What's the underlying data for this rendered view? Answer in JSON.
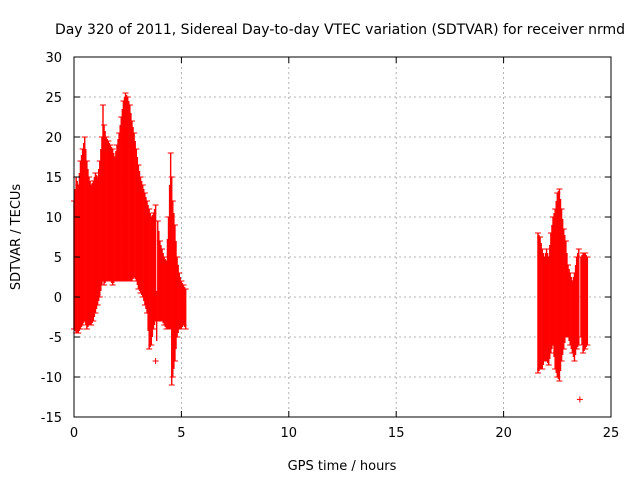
{
  "chart_data": {
    "type": "scatter",
    "title": "Day 320 of 2011, Sidereal Day-to-day VTEC variation (SDTVAR) for receiver nrmd",
    "xlabel": "GPS time / hours",
    "ylabel": "SDTVAR / TECUs",
    "xlim": [
      0,
      25
    ],
    "ylim": [
      -15,
      30
    ],
    "xticks": [
      "0",
      "5",
      "10",
      "15",
      "20",
      "25"
    ],
    "yticks": [
      "-15",
      "-10",
      "-5",
      "0",
      "5",
      "10",
      "15",
      "20",
      "25",
      "30"
    ],
    "grid": true,
    "series": [
      {
        "name": "SDTVAR",
        "color": "#ff0000",
        "style": "error bars (+)",
        "points": [
          {
            "x": 0.0,
            "y": 4.0,
            "lo": -4.0,
            "hi": 12.0
          },
          {
            "x": 0.1,
            "y": 5.0,
            "lo": -4.5,
            "hi": 15.0
          },
          {
            "x": 0.2,
            "y": 4.5,
            "lo": -4.5,
            "hi": 14.0
          },
          {
            "x": 0.3,
            "y": 6.0,
            "lo": -4.0,
            "hi": 17.0
          },
          {
            "x": 0.4,
            "y": 6.5,
            "lo": -3.5,
            "hi": 18.5
          },
          {
            "x": 0.5,
            "y": 7.5,
            "lo": -3.0,
            "hi": 20.0
          },
          {
            "x": 0.6,
            "y": 6.0,
            "lo": -4.0,
            "hi": 17.0
          },
          {
            "x": 0.7,
            "y": 5.0,
            "lo": -3.5,
            "hi": 15.0
          },
          {
            "x": 0.8,
            "y": 4.5,
            "lo": -3.5,
            "hi": 14.0
          },
          {
            "x": 0.9,
            "y": 5.0,
            "lo": -3.0,
            "hi": 14.5
          },
          {
            "x": 1.0,
            "y": 5.5,
            "lo": -2.0,
            "hi": 15.5
          },
          {
            "x": 1.1,
            "y": 6.0,
            "lo": -1.0,
            "hi": 15.0
          },
          {
            "x": 1.2,
            "y": 6.5,
            "lo": 0.0,
            "hi": 17.0
          },
          {
            "x": 1.3,
            "y": 8.0,
            "lo": 1.5,
            "hi": 20.0
          },
          {
            "x": 1.35,
            "y": 9.0,
            "lo": 2.0,
            "hi": 24.0
          },
          {
            "x": 1.4,
            "y": 8.0,
            "lo": 1.5,
            "hi": 21.5
          },
          {
            "x": 1.5,
            "y": 8.5,
            "lo": 2.0,
            "hi": 20.0
          },
          {
            "x": 1.6,
            "y": 8.0,
            "lo": 2.0,
            "hi": 19.5
          },
          {
            "x": 1.7,
            "y": 8.0,
            "lo": 2.0,
            "hi": 19.0
          },
          {
            "x": 1.8,
            "y": 8.5,
            "lo": 1.5,
            "hi": 18.5
          },
          {
            "x": 1.9,
            "y": 8.0,
            "lo": 2.0,
            "hi": 17.5
          },
          {
            "x": 2.0,
            "y": 8.5,
            "lo": 2.0,
            "hi": 19.0
          },
          {
            "x": 2.1,
            "y": 9.0,
            "lo": 2.0,
            "hi": 20.5
          },
          {
            "x": 2.2,
            "y": 10.0,
            "lo": 2.0,
            "hi": 22.5
          },
          {
            "x": 2.3,
            "y": 11.0,
            "lo": 2.0,
            "hi": 24.5
          },
          {
            "x": 2.4,
            "y": 11.5,
            "lo": 2.0,
            "hi": 25.5
          },
          {
            "x": 2.5,
            "y": 11.0,
            "lo": 2.0,
            "hi": 25.0
          },
          {
            "x": 2.6,
            "y": 10.5,
            "lo": 2.0,
            "hi": 24.0
          },
          {
            "x": 2.7,
            "y": 10.0,
            "lo": 2.0,
            "hi": 22.0
          },
          {
            "x": 2.8,
            "y": 9.0,
            "lo": 2.5,
            "hi": 20.5
          },
          {
            "x": 2.9,
            "y": 8.0,
            "lo": 2.0,
            "hi": 18.5
          },
          {
            "x": 3.0,
            "y": 7.5,
            "lo": 1.0,
            "hi": 16.5
          },
          {
            "x": 3.1,
            "y": 6.5,
            "lo": 0.5,
            "hi": 15.0
          },
          {
            "x": 3.2,
            "y": 6.0,
            "lo": 0.0,
            "hi": 14.0
          },
          {
            "x": 3.3,
            "y": 5.5,
            "lo": -1.0,
            "hi": 13.0
          },
          {
            "x": 3.4,
            "y": 5.0,
            "lo": -2.0,
            "hi": 12.0
          },
          {
            "x": 3.5,
            "y": 3.0,
            "lo": -6.5,
            "hi": 11.0
          },
          {
            "x": 3.6,
            "y": 3.0,
            "lo": -6.0,
            "hi": 10.0
          },
          {
            "x": 3.7,
            "y": 4.0,
            "lo": -4.0,
            "hi": 10.5
          },
          {
            "x": 3.8,
            "y": 4.5,
            "lo": -3.0,
            "hi": 11.5
          },
          {
            "x": 3.9,
            "y": 3.0,
            "lo": -3.0,
            "hi": 9.5
          },
          {
            "x": 4.0,
            "y": 2.0,
            "lo": -3.0,
            "hi": 7.0
          },
          {
            "x": 4.1,
            "y": 1.5,
            "lo": -3.0,
            "hi": 6.0
          },
          {
            "x": 4.2,
            "y": 1.0,
            "lo": -3.5,
            "hi": 5.0
          },
          {
            "x": 4.3,
            "y": 1.0,
            "lo": -4.0,
            "hi": 4.5
          },
          {
            "x": 4.4,
            "y": 1.5,
            "lo": -4.0,
            "hi": 10.0
          },
          {
            "x": 4.5,
            "y": 3.0,
            "lo": -4.0,
            "hi": 18.0
          },
          {
            "x": 4.55,
            "y": 2.0,
            "lo": -11.0,
            "hi": 15.0
          },
          {
            "x": 4.6,
            "y": 2.0,
            "lo": -10.0,
            "hi": 12.0
          },
          {
            "x": 4.7,
            "y": 1.5,
            "lo": -8.0,
            "hi": 9.0
          },
          {
            "x": 4.8,
            "y": 1.0,
            "lo": -5.0,
            "hi": 5.0
          },
          {
            "x": 4.9,
            "y": 0.0,
            "lo": -4.0,
            "hi": 3.0
          },
          {
            "x": 5.0,
            "y": -0.5,
            "lo": -4.0,
            "hi": 2.0
          },
          {
            "x": 5.1,
            "y": -0.5,
            "lo": -3.5,
            "hi": 1.5
          },
          {
            "x": 5.2,
            "y": -1.0,
            "lo": -4.0,
            "hi": 1.0
          },
          {
            "x": 3.8,
            "y": -8.0,
            "lo": -8.0,
            "hi": -8.0
          },
          {
            "x": 21.6,
            "y": 0.0,
            "lo": -9.5,
            "hi": 8.0
          },
          {
            "x": 21.7,
            "y": 0.0,
            "lo": -9.0,
            "hi": 7.5
          },
          {
            "x": 21.8,
            "y": -1.0,
            "lo": -9.0,
            "hi": 6.0
          },
          {
            "x": 21.9,
            "y": -1.0,
            "lo": -8.0,
            "hi": 5.0
          },
          {
            "x": 22.0,
            "y": 0.0,
            "lo": -8.0,
            "hi": 6.0
          },
          {
            "x": 22.1,
            "y": 0.0,
            "lo": -8.5,
            "hi": 5.0
          },
          {
            "x": 22.2,
            "y": 2.0,
            "lo": -7.0,
            "hi": 8.0
          },
          {
            "x": 22.3,
            "y": 3.5,
            "lo": -6.0,
            "hi": 10.0
          },
          {
            "x": 22.4,
            "y": 4.0,
            "lo": -9.0,
            "hi": 11.0
          },
          {
            "x": 22.5,
            "y": 4.5,
            "lo": -10.0,
            "hi": 13.0
          },
          {
            "x": 22.6,
            "y": 4.0,
            "lo": -10.5,
            "hi": 13.5
          },
          {
            "x": 22.7,
            "y": 3.0,
            "lo": -8.0,
            "hi": 11.0
          },
          {
            "x": 22.8,
            "y": 1.0,
            "lo": -6.5,
            "hi": 8.5
          },
          {
            "x": 22.9,
            "y": 0.0,
            "lo": -5.0,
            "hi": 7.0
          },
          {
            "x": 23.0,
            "y": -1.0,
            "lo": -5.0,
            "hi": 4.0
          },
          {
            "x": 23.1,
            "y": -2.0,
            "lo": -6.0,
            "hi": 3.0
          },
          {
            "x": 23.2,
            "y": -2.0,
            "lo": -7.0,
            "hi": 2.0
          },
          {
            "x": 23.3,
            "y": -1.5,
            "lo": -8.0,
            "hi": 3.0
          },
          {
            "x": 23.4,
            "y": -1.0,
            "lo": -6.5,
            "hi": 5.0
          },
          {
            "x": 23.5,
            "y": 0.0,
            "lo": -6.0,
            "hi": 6.0
          },
          {
            "x": 23.6,
            "y": 0.0,
            "lo": -5.0,
            "hi": 5.0
          },
          {
            "x": 23.7,
            "y": -0.5,
            "lo": -7.0,
            "hi": 5.5
          },
          {
            "x": 23.8,
            "y": -1.0,
            "lo": -6.5,
            "hi": 5.5
          },
          {
            "x": 23.9,
            "y": -1.0,
            "lo": -6.0,
            "hi": 5.0
          },
          {
            "x": 23.55,
            "y": -12.8,
            "lo": -12.8,
            "hi": -12.8
          }
        ]
      }
    ]
  }
}
